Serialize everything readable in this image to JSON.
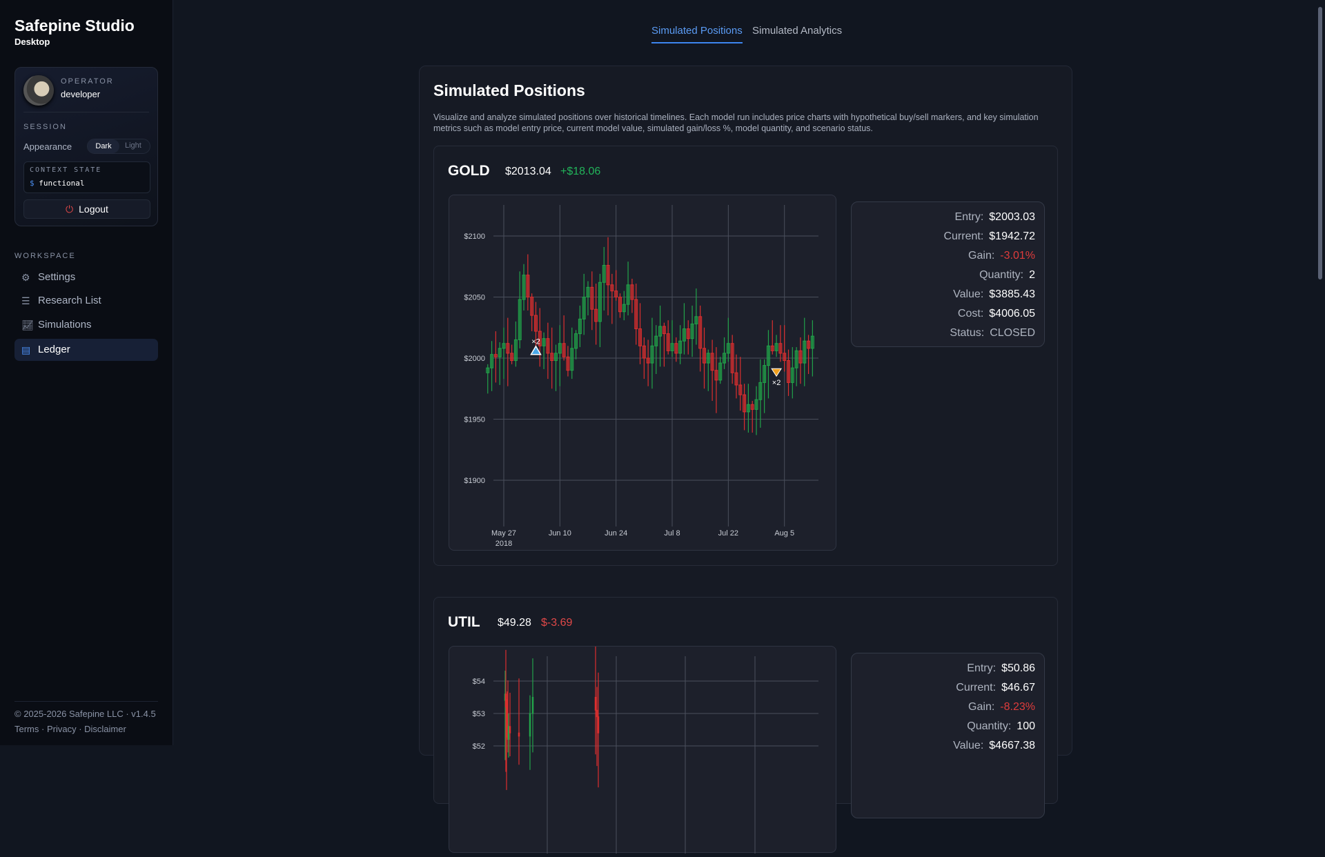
{
  "app": {
    "title": "Safepine Studio",
    "subtitle": "Desktop"
  },
  "operator": {
    "label": "OPERATOR",
    "name": "developer"
  },
  "session": {
    "label": "SESSION",
    "appearance_label": "Appearance",
    "options": [
      "Dark",
      "Light"
    ],
    "selected": "Dark",
    "context_label": "CONTEXT STATE",
    "context_prompt": "$",
    "context_value": "functional",
    "logout": "Logout"
  },
  "workspace": {
    "label": "WORKSPACE",
    "items": [
      {
        "label": "Settings",
        "icon": "gear-icon"
      },
      {
        "label": "Research List",
        "icon": "list-search-icon"
      },
      {
        "label": "Simulations",
        "icon": "chart-line-icon"
      },
      {
        "label": "Ledger",
        "icon": "document-icon",
        "active": true
      }
    ]
  },
  "footer": {
    "copyright": "© 2025-2026 Safepine LLC · v1.4.5",
    "links": [
      "Terms",
      "Privacy",
      "Disclaimer"
    ],
    "sep": " · "
  },
  "tabs": [
    {
      "label": "Simulated Positions",
      "active": true
    },
    {
      "label": "Simulated Analytics"
    }
  ],
  "page": {
    "title": "Simulated Positions",
    "description": "Visualize and analyze simulated positions over historical timelines. Each model run includes price charts with hypothetical buy/sell markers, and key simulation metrics such as model entry price, current model value, simulated gain/loss %, model quantity, and scenario status."
  },
  "colors": {
    "up": "#22a34a",
    "down": "#dc2f2f",
    "accent": "#4a8df0",
    "buy": "#4aa8e8",
    "sell": "#f0a020"
  },
  "positions": [
    {
      "symbol": "GOLD",
      "price": "$2013.04",
      "change": "+$18.06",
      "change_dir": "up",
      "stats": [
        {
          "k": "Entry:",
          "v": "$2003.03"
        },
        {
          "k": "Current:",
          "v": "$1942.72"
        },
        {
          "k": "Gain:",
          "v": "-3.01%",
          "neg": true
        },
        {
          "k": "Quantity:",
          "v": "2"
        },
        {
          "k": "Value:",
          "v": "$3885.43"
        },
        {
          "k": "Cost:",
          "v": "$4006.05"
        },
        {
          "k": "Status:",
          "v": "CLOSED",
          "muted": true
        }
      ]
    },
    {
      "symbol": "UTIL",
      "price": "$49.28",
      "change": "$-3.69",
      "change_dir": "down",
      "stats": [
        {
          "k": "Entry:",
          "v": "$50.86"
        },
        {
          "k": "Current:",
          "v": "$46.67"
        },
        {
          "k": "Gain:",
          "v": "-8.23%",
          "neg": true
        },
        {
          "k": "Quantity:",
          "v": "100"
        },
        {
          "k": "Value:",
          "v": "$4667.38"
        }
      ]
    }
  ],
  "chart_data": [
    {
      "type": "candlestick",
      "symbol": "GOLD",
      "start_date": "2018-05-23",
      "ylim": [
        1870,
        2120
      ],
      "yticks": [
        {
          "v": 2100,
          "label": "$2100"
        },
        {
          "v": 2050,
          "label": "$2050"
        },
        {
          "v": 2000,
          "label": "$2000"
        },
        {
          "v": 1950,
          "label": "$1950"
        },
        {
          "v": 1900,
          "label": "$1900"
        }
      ],
      "xticks": [
        {
          "day": 4,
          "label": "May 27",
          "sub": "2018"
        },
        {
          "day": 18,
          "label": "Jun 10"
        },
        {
          "day": 32,
          "label": "Jun 24"
        },
        {
          "day": 46,
          "label": "Jul 8"
        },
        {
          "day": 60,
          "label": "Jul 22"
        },
        {
          "day": 74,
          "label": "Aug 5"
        }
      ],
      "closes": [
        1992,
        2003,
        2001,
        2008,
        2012,
        2004,
        1998,
        2015,
        2048,
        2068,
        2050,
        2035,
        2022,
        2010,
        2016,
        2004,
        1998,
        2004,
        2012,
        2001,
        1990,
        2008,
        2020,
        2032,
        2050,
        2058,
        2040,
        2030,
        2062,
        2076,
        2060,
        2055,
        2050,
        2038,
        2044,
        2060,
        2048,
        2024,
        2010,
        2000,
        1996,
        2010,
        2018,
        2026,
        2020,
        2006,
        2012,
        2004,
        2014,
        2024,
        2016,
        2028,
        2034,
        2008,
        1996,
        2004,
        1990,
        1982,
        1996,
        2004,
        2012,
        1988,
        1978,
        1970,
        1956,
        1962,
        1958,
        1966,
        1980,
        1994,
        2010,
        2006,
        2012,
        2004,
        1998,
        1980,
        1992,
        2006,
        1996,
        2014,
        2008,
        2018
      ],
      "markers": [
        {
          "type": "buy",
          "day": 12,
          "price": 2003,
          "label": "×2"
        },
        {
          "type": "sell",
          "day": 72,
          "price": 1988,
          "label": "×2"
        }
      ]
    },
    {
      "type": "candlestick",
      "symbol": "UTIL",
      "ylim": [
        51,
        55
      ],
      "yticks": [
        {
          "v": 54,
          "label": "$54"
        },
        {
          "v": 53,
          "label": "$53"
        },
        {
          "v": 52,
          "label": "$52"
        }
      ],
      "closes": [
        53.6,
        53.2,
        52.8,
        52.5,
        52.2,
        52.6,
        52.4,
        52.3,
        53.0,
        53.5,
        53.1,
        52.9,
        52.4
      ]
    }
  ]
}
